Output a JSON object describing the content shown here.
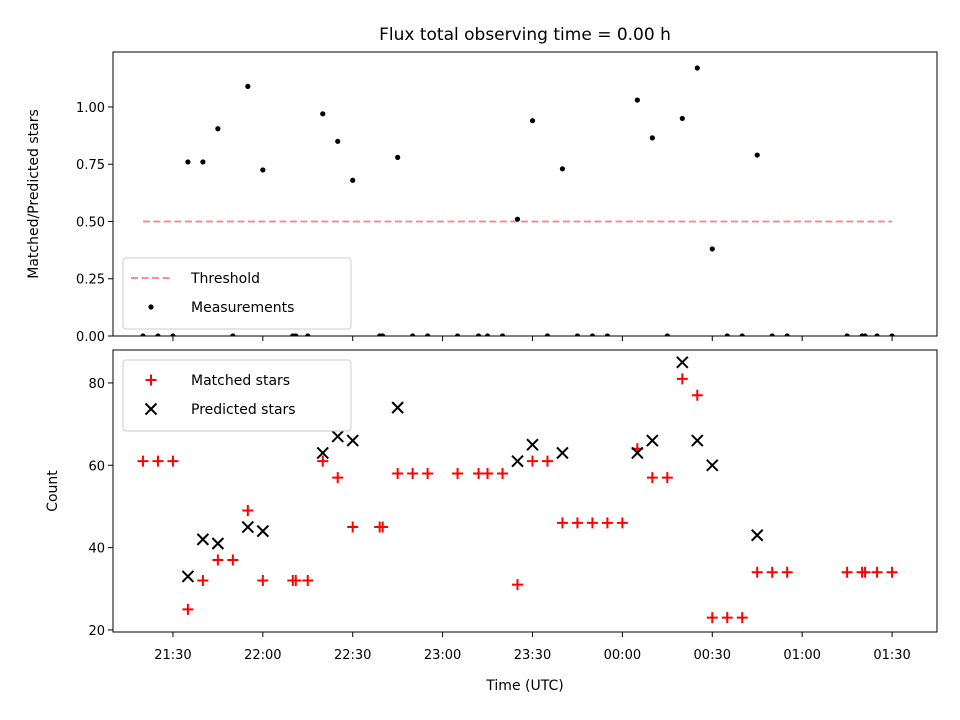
{
  "figure": {
    "title": "Flux total observing time = 0.00 h",
    "xlabel": "Time (UTC)"
  },
  "chart_data": [
    {
      "type": "scatter",
      "title": "Flux total observing time = 0.00 h",
      "ylabel": "Matched/Predicted stars",
      "xlim": [
        "21:10",
        "01:45"
      ],
      "ylim": [
        0,
        1.24
      ],
      "yticks": [
        0.0,
        0.25,
        0.5,
        0.75,
        1.0
      ],
      "ytick_labels": [
        "0.00",
        "0.25",
        "0.50",
        "0.75",
        "1.00"
      ],
      "legend_position": "lower-left",
      "threshold": {
        "name": "Threshold",
        "y": 0.5,
        "x_start": "21:20",
        "x_end": "01:30",
        "color": "#ff7f7f",
        "style": "dashed"
      },
      "series": [
        {
          "name": "Measurements",
          "color": "#000000",
          "marker": "dot",
          "points": [
            [
              "21:20",
              0
            ],
            [
              "21:25",
              0
            ],
            [
              "21:30",
              0
            ],
            [
              "21:35",
              0.76
            ],
            [
              "21:40",
              0.76
            ],
            [
              "21:45",
              0.905
            ],
            [
              "21:50",
              0
            ],
            [
              "21:55",
              1.09
            ],
            [
              "22:00",
              0.725
            ],
            [
              "22:10",
              0
            ],
            [
              "22:11",
              0
            ],
            [
              "22:15",
              0
            ],
            [
              "22:20",
              0.97
            ],
            [
              "22:25",
              0.85
            ],
            [
              "22:30",
              0.68
            ],
            [
              "22:39",
              0
            ],
            [
              "22:40",
              0
            ],
            [
              "22:45",
              0.78
            ],
            [
              "22:50",
              0
            ],
            [
              "22:55",
              0
            ],
            [
              "23:05",
              0
            ],
            [
              "23:12",
              0
            ],
            [
              "23:15",
              0
            ],
            [
              "23:20",
              0
            ],
            [
              "23:25",
              0.51
            ],
            [
              "23:30",
              0.94
            ],
            [
              "23:35",
              0
            ],
            [
              "23:40",
              0.73
            ],
            [
              "23:45",
              0
            ],
            [
              "23:50",
              0
            ],
            [
              "23:55",
              0
            ],
            [
              "00:05",
              1.03
            ],
            [
              "00:10",
              0.865
            ],
            [
              "00:15",
              0
            ],
            [
              "00:20",
              0.95
            ],
            [
              "00:25",
              1.17
            ],
            [
              "00:30",
              0.38
            ],
            [
              "00:35",
              0
            ],
            [
              "00:40",
              0
            ],
            [
              "00:45",
              0.79
            ],
            [
              "00:50",
              0
            ],
            [
              "00:55",
              0
            ],
            [
              "01:15",
              0
            ],
            [
              "01:20",
              0
            ],
            [
              "01:21",
              0
            ],
            [
              "01:25",
              0
            ],
            [
              "01:30",
              0
            ]
          ]
        }
      ]
    },
    {
      "type": "scatter",
      "xlabel": "Time (UTC)",
      "ylabel": "Count",
      "xlim": [
        "21:10",
        "01:45"
      ],
      "ylim": [
        19.5,
        88
      ],
      "yticks": [
        20,
        40,
        60,
        80
      ],
      "xticks": [
        "21:30",
        "22:00",
        "22:30",
        "23:00",
        "23:30",
        "00:00",
        "00:30",
        "01:00",
        "01:30"
      ],
      "legend_position": "upper-left",
      "series": [
        {
          "name": "Matched stars",
          "color": "#ff0000",
          "marker": "plus",
          "points": [
            [
              "21:20",
              61
            ],
            [
              "21:25",
              61
            ],
            [
              "21:30",
              61
            ],
            [
              "21:35",
              25
            ],
            [
              "21:40",
              32
            ],
            [
              "21:45",
              37
            ],
            [
              "21:50",
              37
            ],
            [
              "21:55",
              49
            ],
            [
              "22:00",
              32
            ],
            [
              "22:10",
              32
            ],
            [
              "22:11",
              32
            ],
            [
              "22:15",
              32
            ],
            [
              "22:20",
              61
            ],
            [
              "22:25",
              57
            ],
            [
              "22:30",
              45
            ],
            [
              "22:39",
              45
            ],
            [
              "22:40",
              45
            ],
            [
              "22:45",
              58
            ],
            [
              "22:50",
              58
            ],
            [
              "22:55",
              58
            ],
            [
              "23:05",
              58
            ],
            [
              "23:12",
              58
            ],
            [
              "23:15",
              58
            ],
            [
              "23:20",
              58
            ],
            [
              "23:25",
              31
            ],
            [
              "23:30",
              61
            ],
            [
              "23:35",
              61
            ],
            [
              "23:40",
              46
            ],
            [
              "23:45",
              46
            ],
            [
              "23:50",
              46
            ],
            [
              "23:55",
              46
            ],
            [
              "00:00",
              46
            ],
            [
              "00:05",
              64
            ],
            [
              "00:10",
              57
            ],
            [
              "00:15",
              57
            ],
            [
              "00:20",
              81
            ],
            [
              "00:25",
              77
            ],
            [
              "00:30",
              23
            ],
            [
              "00:35",
              23
            ],
            [
              "00:40",
              23
            ],
            [
              "00:45",
              34
            ],
            [
              "00:50",
              34
            ],
            [
              "00:55",
              34
            ],
            [
              "01:15",
              34
            ],
            [
              "01:20",
              34
            ],
            [
              "01:21",
              34
            ],
            [
              "01:25",
              34
            ],
            [
              "01:30",
              34
            ]
          ]
        },
        {
          "name": "Predicted stars",
          "color": "#000000",
          "marker": "x",
          "points": [
            [
              "21:35",
              33
            ],
            [
              "21:40",
              42
            ],
            [
              "21:45",
              41
            ],
            [
              "21:55",
              45
            ],
            [
              "22:00",
              44
            ],
            [
              "22:20",
              63
            ],
            [
              "22:25",
              67
            ],
            [
              "22:30",
              66
            ],
            [
              "22:45",
              74
            ],
            [
              "23:25",
              61
            ],
            [
              "23:30",
              65
            ],
            [
              "23:40",
              63
            ],
            [
              "00:05",
              63
            ],
            [
              "00:10",
              66
            ],
            [
              "00:20",
              85
            ],
            [
              "00:25",
              66
            ],
            [
              "00:30",
              60
            ],
            [
              "00:45",
              43
            ]
          ]
        }
      ]
    }
  ]
}
